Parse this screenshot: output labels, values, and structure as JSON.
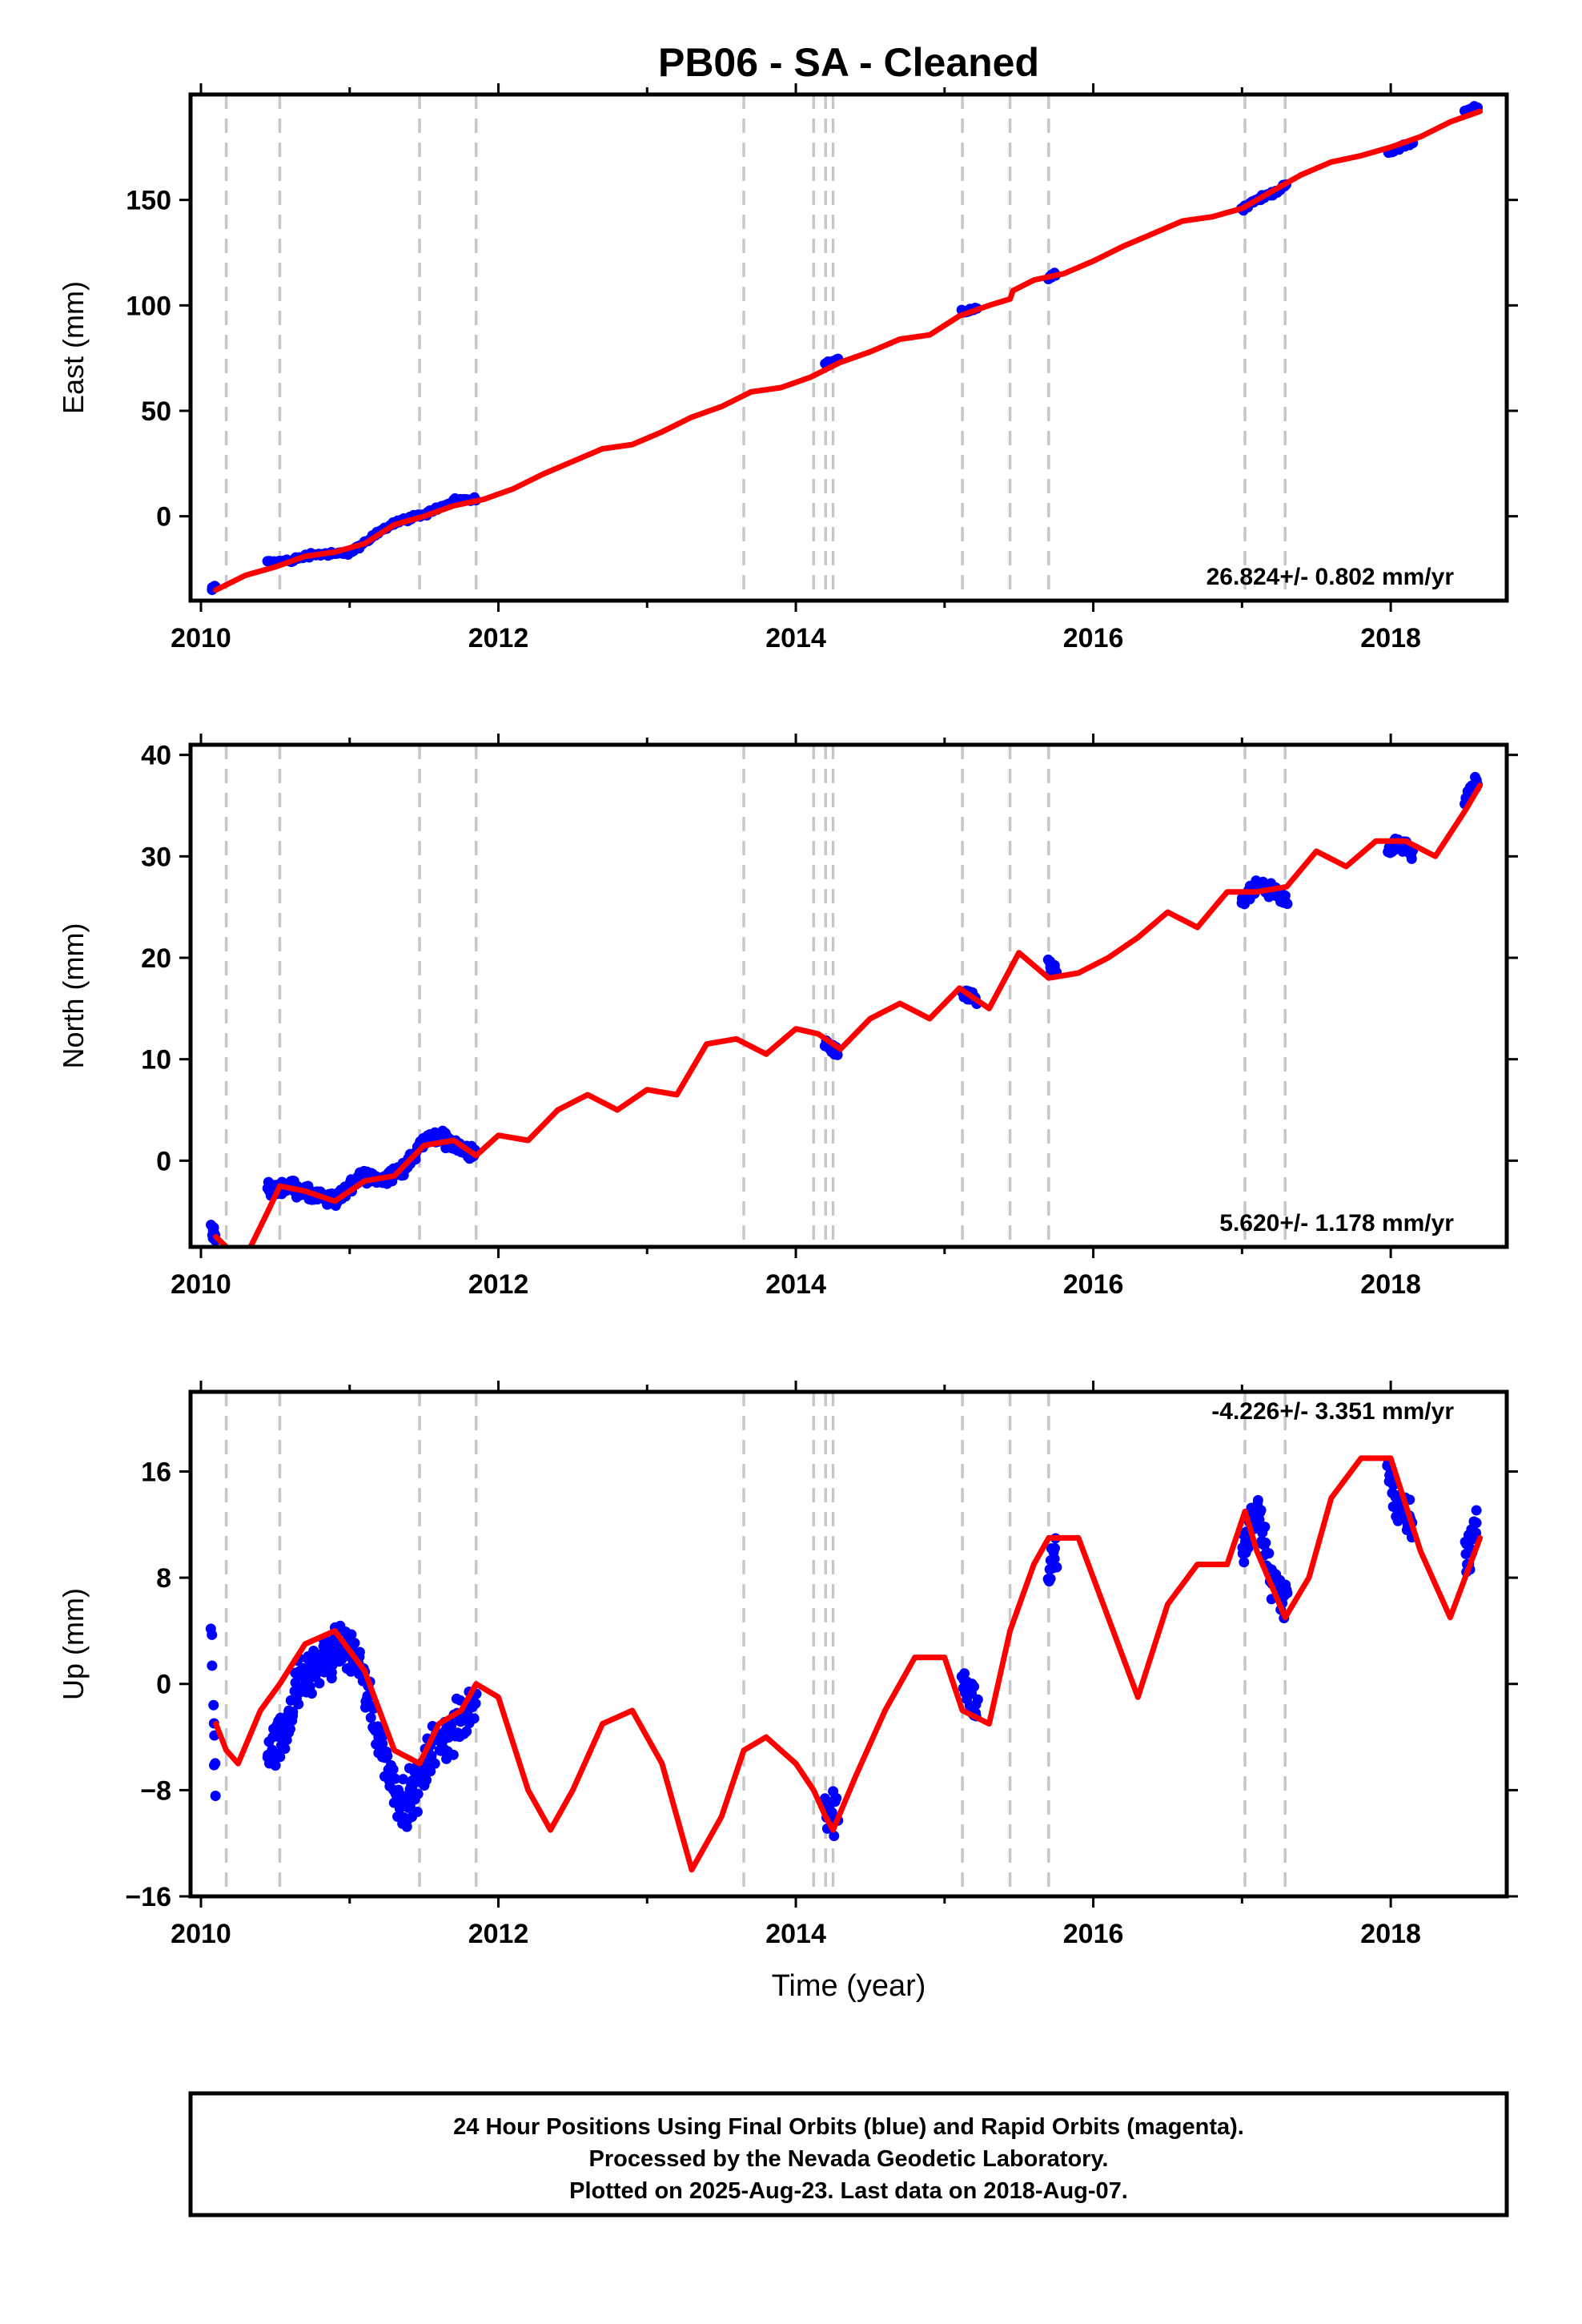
{
  "title": "PB06  - SA - Cleaned",
  "footer": {
    "line1": "24 Hour Positions Using Final Orbits (blue) and Rapid Orbits (magenta).",
    "line2": "Processed by the Nevada Geodetic Laboratory.",
    "line3": "Plotted on 2025-Aug-23. Last data on 2018-Aug-07."
  },
  "colors": {
    "data": "#0000ff",
    "model": "#ff0000",
    "steps": "#c8c8c8",
    "frame": "#000000"
  },
  "chart_data": [
    {
      "type": "scatter",
      "component": "east",
      "ylabel": "East (mm)",
      "xlabel": "",
      "rate": "26.824+/- 0.802 mm/yr",
      "xlim": [
        2009.93,
        2018.78
      ],
      "ylim": [
        -40,
        200
      ],
      "xticks": [
        2010,
        2012,
        2014,
        2016,
        2018
      ],
      "yticks": [
        0,
        50,
        100,
        150
      ],
      "step_lines": [
        2010.17,
        2010.53,
        2011.47,
        2011.85,
        2013.65,
        2014.12,
        2014.2,
        2014.25,
        2015.12,
        2015.44,
        2015.7,
        2017.02,
        2017.29
      ],
      "model_curve": {
        "x": [
          2010.1,
          2010.3,
          2010.5,
          2010.7,
          2010.9,
          2011.1,
          2011.3,
          2011.5,
          2011.7,
          2011.9,
          2012.1,
          2012.3,
          2012.5,
          2012.7,
          2012.9,
          2013.1,
          2013.3,
          2013.5,
          2013.7,
          2013.9,
          2014.1,
          2014.3,
          2014.5,
          2014.7,
          2014.9,
          2015.1,
          2015.3,
          2015.44,
          2015.46,
          2015.6,
          2015.8,
          2016.0,
          2016.2,
          2016.4,
          2016.6,
          2016.8,
          2017.0,
          2017.2,
          2017.4,
          2017.6,
          2017.8,
          2018.0,
          2018.2,
          2018.4,
          2018.6
        ],
        "y": [
          -35,
          -28,
          -24,
          -19,
          -17,
          -13,
          -4,
          0,
          5,
          8,
          13,
          20,
          26,
          32,
          34,
          40,
          47,
          52,
          59,
          61,
          66,
          73,
          78,
          84,
          86,
          95,
          100,
          103,
          107,
          112,
          115,
          121,
          128,
          134,
          140,
          142,
          146,
          154,
          162,
          168,
          171,
          175,
          180,
          187,
          192
        ]
      },
      "data_segments": [
        {
          "x": [
            2010.07,
            2010.1
          ],
          "y": [
            -35,
            -33
          ]
        },
        {
          "x": [
            2010.45,
            2010.6,
            2010.75,
            2010.9,
            2011.0,
            2011.1,
            2011.2,
            2011.3,
            2011.4,
            2011.5,
            2011.6,
            2011.7,
            2011.85
          ],
          "y": [
            -22,
            -21,
            -18,
            -18,
            -17,
            -13,
            -7,
            -3,
            -1,
            1,
            4,
            7,
            8
          ]
        },
        {
          "x": [
            2014.2,
            2014.28
          ],
          "y": [
            72,
            74
          ]
        },
        {
          "x": [
            2015.12,
            2015.22
          ],
          "y": [
            97,
            99
          ]
        },
        {
          "x": [
            2015.7,
            2015.75
          ],
          "y": [
            113,
            115
          ]
        },
        {
          "x": [
            2017.0,
            2017.1,
            2017.2,
            2017.3
          ],
          "y": [
            146,
            150,
            153,
            157
          ]
        },
        {
          "x": [
            2017.98,
            2018.05,
            2018.15
          ],
          "y": [
            172,
            175,
            177
          ]
        },
        {
          "x": [
            2018.5,
            2018.58
          ],
          "y": [
            192,
            194
          ]
        }
      ]
    },
    {
      "type": "scatter",
      "component": "north",
      "ylabel": "North (mm)",
      "xlabel": "",
      "rate": "5.620+/- 1.178 mm/yr",
      "xlim": [
        2009.93,
        2018.78
      ],
      "ylim": [
        -8.5,
        41
      ],
      "xticks": [
        2010,
        2012,
        2014,
        2016,
        2018
      ],
      "yticks": [
        0,
        10,
        20,
        30,
        40
      ],
      "step_lines": [
        2010.17,
        2010.53,
        2011.47,
        2011.85,
        2013.65,
        2014.12,
        2014.2,
        2014.25,
        2015.12,
        2015.44,
        2015.7,
        2017.02,
        2017.29
      ],
      "model_curve": {
        "x": [
          2010.1,
          2010.17,
          2010.3,
          2010.45,
          2010.53,
          2010.7,
          2010.9,
          2011.1,
          2011.3,
          2011.5,
          2011.7,
          2011.85,
          2012.0,
          2012.2,
          2012.4,
          2012.6,
          2012.8,
          2013.0,
          2013.2,
          2013.4,
          2013.6,
          2013.8,
          2014.0,
          2014.15,
          2014.3,
          2014.5,
          2014.7,
          2014.9,
          2015.1,
          2015.3,
          2015.5,
          2015.7,
          2015.9,
          2016.1,
          2016.3,
          2016.5,
          2016.7,
          2016.9,
          2017.1,
          2017.3,
          2017.5,
          2017.7,
          2017.9,
          2018.1,
          2018.3,
          2018.5,
          2018.6
        ],
        "y": [
          -7.5,
          -8.5,
          -9.5,
          -5,
          -2.5,
          -3,
          -4,
          -2,
          -1.5,
          1.5,
          2,
          0.5,
          2.5,
          2,
          5,
          6.5,
          5,
          7,
          6.5,
          11.5,
          12,
          10.5,
          13,
          12.5,
          11,
          14,
          15.5,
          14,
          17,
          15,
          20.5,
          18,
          18.5,
          20,
          22,
          24.5,
          23,
          26.5,
          26.5,
          27,
          30.5,
          29,
          31.5,
          31.5,
          30,
          34.5,
          37
        ]
      },
      "data_segments": [
        {
          "x": [
            2010.07,
            2010.1
          ],
          "y": [
            -6.5,
            -7.5
          ]
        },
        {
          "x": [
            2010.45,
            2010.6,
            2010.75,
            2010.9,
            2011.0,
            2011.1,
            2011.2,
            2011.35,
            2011.5,
            2011.6,
            2011.7,
            2011.85
          ],
          "y": [
            -3,
            -2.5,
            -3.5,
            -4,
            -2.5,
            -1.5,
            -2,
            -1,
            2,
            2.5,
            1.5,
            0.5
          ]
        },
        {
          "x": [
            2014.2,
            2014.28
          ],
          "y": [
            11.5,
            10.5
          ]
        },
        {
          "x": [
            2015.12,
            2015.22
          ],
          "y": [
            16.5,
            15.5
          ]
        },
        {
          "x": [
            2015.7,
            2015.75
          ],
          "y": [
            19.5,
            18.5
          ]
        },
        {
          "x": [
            2017.0,
            2017.1,
            2017.2,
            2017.3
          ],
          "y": [
            25.5,
            27,
            26.5,
            25.5
          ]
        },
        {
          "x": [
            2017.98,
            2018.05,
            2018.15
          ],
          "y": [
            30.5,
            31.5,
            30
          ]
        },
        {
          "x": [
            2018.5,
            2018.58
          ],
          "y": [
            35.5,
            37.5
          ]
        }
      ]
    },
    {
      "type": "scatter",
      "component": "up",
      "ylabel": "Up (mm)",
      "xlabel": "Time (year)",
      "rate": "-4.226+/- 3.351 mm/yr",
      "xlim": [
        2009.93,
        2018.78
      ],
      "ylim": [
        -16,
        22
      ],
      "xticks": [
        2010,
        2012,
        2014,
        2016,
        2018
      ],
      "yticks": [
        -16,
        -8,
        0,
        8,
        16
      ],
      "step_lines": [
        2010.17,
        2010.53,
        2011.47,
        2011.85,
        2013.65,
        2014.12,
        2014.2,
        2014.25,
        2015.12,
        2015.44,
        2015.7,
        2017.02,
        2017.29
      ],
      "model_curve": {
        "x": [
          2010.1,
          2010.17,
          2010.25,
          2010.4,
          2010.53,
          2010.7,
          2010.9,
          2011.1,
          2011.3,
          2011.47,
          2011.6,
          2011.75,
          2011.85,
          2012.0,
          2012.2,
          2012.35,
          2012.5,
          2012.7,
          2012.9,
          2013.1,
          2013.3,
          2013.5,
          2013.65,
          2013.8,
          2014.0,
          2014.12,
          2014.2,
          2014.25,
          2014.4,
          2014.6,
          2014.8,
          2015.0,
          2015.12,
          2015.3,
          2015.44,
          2015.6,
          2015.7,
          2015.9,
          2016.1,
          2016.3,
          2016.5,
          2016.7,
          2016.9,
          2017.02,
          2017.1,
          2017.29,
          2017.45,
          2017.6,
          2017.8,
          2018.0,
          2018.2,
          2018.4,
          2018.6
        ],
        "y": [
          -3,
          -5,
          -6,
          -2,
          0,
          3,
          4,
          1,
          -5,
          -6,
          -3,
          -2,
          0,
          -1,
          -8,
          -11,
          -8,
          -3,
          -2,
          -6,
          -14,
          -10,
          -5,
          -4,
          -6,
          -8,
          -10,
          -11,
          -7,
          -2,
          2,
          2,
          -2,
          -3,
          4,
          9,
          11,
          11,
          5,
          -1,
          6,
          9,
          9,
          13,
          10,
          5,
          8,
          14,
          17,
          17,
          10,
          5,
          11
        ]
      },
      "data_segments": [
        {
          "x": [
            2010.07,
            2010.1
          ],
          "y": [
            3.5,
            -8
          ]
        },
        {
          "x": [
            2010.45,
            2010.55,
            2010.65,
            2010.75,
            2010.85,
            2010.95,
            2011.05,
            2011.15,
            2011.25,
            2011.35,
            2011.45,
            2011.55,
            2011.65,
            2011.75,
            2011.85
          ],
          "y": [
            -5,
            -4,
            0,
            1,
            2,
            3,
            2,
            -2,
            -6,
            -9,
            -8,
            -5,
            -4,
            -3,
            -1
          ]
        },
        {
          "x": [
            2014.2,
            2014.28
          ],
          "y": [
            -9,
            -10
          ]
        },
        {
          "x": [
            2015.12,
            2015.22
          ],
          "y": [
            1,
            -2
          ]
        },
        {
          "x": [
            2015.7,
            2015.75
          ],
          "y": [
            8,
            10
          ]
        },
        {
          "x": [
            2017.0,
            2017.1,
            2017.2,
            2017.3
          ],
          "y": [
            10,
            13,
            8,
            6
          ]
        },
        {
          "x": [
            2017.98,
            2018.05,
            2018.15
          ],
          "y": [
            17,
            13,
            12
          ]
        },
        {
          "x": [
            2018.5,
            2018.58
          ],
          "y": [
            9,
            12
          ]
        }
      ]
    }
  ]
}
